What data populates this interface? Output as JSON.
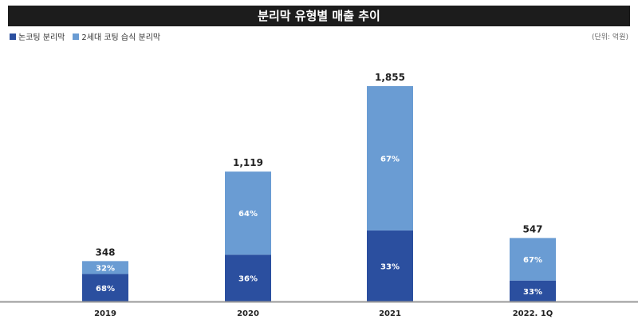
{
  "chart_data": {
    "type": "bar",
    "stacked": true,
    "title": "분리막 유형별 매출 추이",
    "unit": "(단위: 억원)",
    "categories": [
      "2019",
      "2020",
      "2021",
      "2022. 1Q"
    ],
    "totals": [
      348,
      1119,
      1855,
      547
    ],
    "total_labels": [
      "348",
      "1,119",
      "1,855",
      "547"
    ],
    "series": [
      {
        "name": "논코팅 분리막",
        "color": "#2b4f9f",
        "share_percent": [
          68,
          36,
          33,
          33
        ]
      },
      {
        "name": "2세대 코팅 습식 분리막",
        "color": "#6a9cd3",
        "share_percent": [
          32,
          64,
          67,
          67
        ]
      }
    ],
    "legend": "top-left",
    "grid": false
  }
}
